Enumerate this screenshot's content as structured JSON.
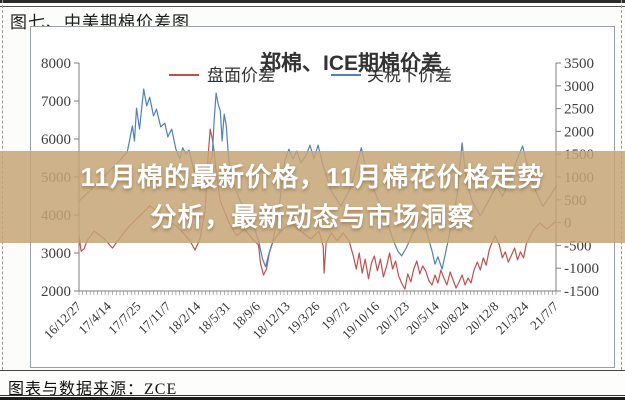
{
  "page": {
    "figure_label": "图七、中美期棉价差图",
    "source_text": "图表与数据来源：ZCE"
  },
  "banner": {
    "line1": "11月棉的最新价格，11月棉花价格走势",
    "line2": "分析，最新动态与市场洞察",
    "bg_color": "rgba(197,165,118,0.85)",
    "text_color": "#ffffff"
  },
  "chart_data": {
    "type": "line",
    "title": "郑棉、ICE期棉价差",
    "grid": false,
    "legend_position": "top",
    "axis_color": "#7f7f7f",
    "label_color": "#3f3f3f",
    "x_tick_labels": [
      "16/12/27",
      "17/4/14",
      "17/7/25",
      "17/11/7",
      "18/2/14",
      "18/5/31",
      "18/9/6",
      "18/12/13",
      "19/3/26",
      "19/7/2",
      "19/10/16",
      "20/1/23",
      "20/5/14",
      "20/8/24",
      "20/12/8",
      "21/3/24",
      "21/7/7"
    ],
    "left_axis": {
      "min": 2000,
      "max": 8000,
      "ticks": [
        8000,
        7000,
        6000,
        5000,
        4000,
        3000,
        2000
      ]
    },
    "right_axis": {
      "min": -1500,
      "max": 3500,
      "ticks": [
        3500,
        3000,
        2500,
        2000,
        1500,
        1000,
        500,
        0,
        -500,
        -1000,
        -1500
      ]
    },
    "legend": [
      {
        "name": "盘面价差",
        "color": "#c0504d"
      },
      {
        "name": "关税下价差",
        "color": "#4f81bd"
      }
    ],
    "series": [
      {
        "name": "盘面价差",
        "color": "#c0504d",
        "axis": "left",
        "points": [
          [
            0,
            3450
          ],
          [
            0.07,
            3050
          ],
          [
            0.17,
            3110
          ],
          [
            0.27,
            3320
          ],
          [
            0.51,
            3580
          ],
          [
            0.85,
            3370
          ],
          [
            1.12,
            3130
          ],
          [
            1.35,
            3370
          ],
          [
            1.69,
            3710
          ],
          [
            2.03,
            3970
          ],
          [
            2.37,
            4240
          ],
          [
            2.71,
            4050
          ],
          [
            3.04,
            3840
          ],
          [
            3.38,
            3630
          ],
          [
            3.72,
            3320
          ],
          [
            3.89,
            3080
          ],
          [
            4.06,
            3370
          ],
          [
            4.23,
            4110
          ],
          [
            4.33,
            5550
          ],
          [
            4.4,
            6260
          ],
          [
            4.47,
            6000
          ],
          [
            4.53,
            5680
          ],
          [
            4.6,
            5160
          ],
          [
            4.74,
            4370
          ],
          [
            5.01,
            3840
          ],
          [
            5.28,
            3450
          ],
          [
            5.55,
            3630
          ],
          [
            5.82,
            3370
          ],
          [
            6.02,
            3210
          ],
          [
            6.09,
            2710
          ],
          [
            6.19,
            2420
          ],
          [
            6.29,
            2580
          ],
          [
            6.39,
            3030
          ],
          [
            6.49,
            3290
          ],
          [
            6.77,
            3580
          ],
          [
            7.1,
            3790
          ],
          [
            7.44,
            3580
          ],
          [
            7.78,
            3370
          ],
          [
            8.05,
            3580
          ],
          [
            8.19,
            3180
          ],
          [
            8.22,
            2470
          ],
          [
            8.29,
            3260
          ],
          [
            8.46,
            3530
          ],
          [
            8.66,
            3320
          ],
          [
            8.86,
            3530
          ],
          [
            9.06,
            3320
          ],
          [
            9.2,
            2920
          ],
          [
            9.3,
            2580
          ],
          [
            9.4,
            3000
          ],
          [
            9.5,
            2470
          ],
          [
            9.6,
            2840
          ],
          [
            9.71,
            2320
          ],
          [
            9.81,
            2740
          ],
          [
            9.91,
            2920
          ],
          [
            10.01,
            2530
          ],
          [
            10.11,
            2840
          ],
          [
            10.21,
            2370
          ],
          [
            10.32,
            2660
          ],
          [
            10.42,
            3000
          ],
          [
            10.52,
            2580
          ],
          [
            10.62,
            2790
          ],
          [
            10.72,
            2400
          ],
          [
            10.82,
            2210
          ],
          [
            10.93,
            2050
          ],
          [
            11.03,
            2450
          ],
          [
            11.13,
            2240
          ],
          [
            11.23,
            2580
          ],
          [
            11.33,
            2790
          ],
          [
            11.43,
            2450
          ],
          [
            11.53,
            2660
          ],
          [
            11.63,
            2530
          ],
          [
            11.74,
            2260
          ],
          [
            11.84,
            2160
          ],
          [
            11.94,
            2420
          ],
          [
            12.04,
            2210
          ],
          [
            12.14,
            2550
          ],
          [
            12.24,
            2340
          ],
          [
            12.34,
            2160
          ],
          [
            12.45,
            2500
          ],
          [
            12.55,
            2290
          ],
          [
            12.65,
            2080
          ],
          [
            12.75,
            2240
          ],
          [
            12.85,
            2420
          ],
          [
            12.95,
            2160
          ],
          [
            13.05,
            2340
          ],
          [
            13.15,
            2210
          ],
          [
            13.25,
            2550
          ],
          [
            13.36,
            2760
          ],
          [
            13.46,
            2550
          ],
          [
            13.56,
            2870
          ],
          [
            13.66,
            2680
          ],
          [
            13.76,
            3080
          ],
          [
            13.86,
            3290
          ],
          [
            13.96,
            3450
          ],
          [
            14.1,
            3210
          ],
          [
            14.2,
            2870
          ],
          [
            14.3,
            3030
          ],
          [
            14.4,
            2760
          ],
          [
            14.51,
            2950
          ],
          [
            14.61,
            3130
          ],
          [
            14.71,
            2820
          ],
          [
            14.81,
            3030
          ],
          [
            14.91,
            2870
          ],
          [
            15.01,
            3260
          ],
          [
            15.22,
            3580
          ],
          [
            15.45,
            3790
          ],
          [
            15.69,
            3630
          ],
          [
            16,
            3840
          ]
        ]
      },
      {
        "name": "关税下价差",
        "color": "#4f81bd",
        "axis": "right",
        "points": [
          [
            0,
            470
          ],
          [
            0.68,
            900
          ],
          [
            1.35,
            1350
          ],
          [
            1.62,
            1550
          ],
          [
            1.79,
            2120
          ],
          [
            1.86,
            1790
          ],
          [
            1.93,
            2510
          ],
          [
            2.03,
            2050
          ],
          [
            2.17,
            2930
          ],
          [
            2.27,
            2560
          ],
          [
            2.37,
            2750
          ],
          [
            2.5,
            2340
          ],
          [
            2.6,
            2490
          ],
          [
            2.74,
            2100
          ],
          [
            2.88,
            2180
          ],
          [
            2.98,
            1880
          ],
          [
            3.11,
            2050
          ],
          [
            3.25,
            1610
          ],
          [
            3.38,
            1400
          ],
          [
            3.48,
            1640
          ],
          [
            3.59,
            1500
          ],
          [
            3.69,
            1590
          ],
          [
            3.82,
            1240
          ],
          [
            4.06,
            690
          ],
          [
            4.3,
            1130
          ],
          [
            4.47,
            1460
          ],
          [
            4.53,
            2230
          ],
          [
            4.6,
            2840
          ],
          [
            4.67,
            2600
          ],
          [
            4.74,
            2450
          ],
          [
            4.8,
            1790
          ],
          [
            4.87,
            2380
          ],
          [
            4.94,
            2120
          ],
          [
            5.01,
            1460
          ],
          [
            5.14,
            910
          ],
          [
            5.41,
            470
          ],
          [
            5.75,
            150
          ],
          [
            6.02,
            -400
          ],
          [
            6.16,
            -800
          ],
          [
            6.26,
            -970
          ],
          [
            6.36,
            -710
          ],
          [
            6.49,
            -450
          ],
          [
            6.7,
            250
          ],
          [
            6.9,
            1350
          ],
          [
            7.04,
            1610
          ],
          [
            7.17,
            1400
          ],
          [
            7.31,
            1570
          ],
          [
            7.44,
            1310
          ],
          [
            7.61,
            1460
          ],
          [
            7.75,
            1700
          ],
          [
            7.88,
            1400
          ],
          [
            8.02,
            1700
          ],
          [
            8.19,
            1240
          ],
          [
            8.46,
            690
          ],
          [
            8.79,
            360
          ],
          [
            9.13,
            800
          ],
          [
            9.47,
            1640
          ],
          [
            9.64,
            1130
          ],
          [
            9.98,
            580
          ],
          [
            10.32,
            40
          ],
          [
            10.55,
            -400
          ],
          [
            10.69,
            -620
          ],
          [
            10.82,
            -730
          ],
          [
            10.96,
            -580
          ],
          [
            11.09,
            -400
          ],
          [
            11.3,
            -80
          ],
          [
            11.5,
            150
          ],
          [
            11.7,
            -290
          ],
          [
            11.84,
            -620
          ],
          [
            11.94,
            -910
          ],
          [
            12.04,
            -750
          ],
          [
            12.18,
            -1020
          ],
          [
            12.28,
            -710
          ],
          [
            12.38,
            -400
          ],
          [
            12.51,
            40
          ],
          [
            12.68,
            580
          ],
          [
            12.85,
            1750
          ],
          [
            12.99,
            910
          ],
          [
            13.19,
            470
          ],
          [
            13.46,
            150
          ],
          [
            13.73,
            470
          ],
          [
            14,
            800
          ],
          [
            14.21,
            580
          ],
          [
            14.48,
            1020
          ],
          [
            14.68,
            1350
          ],
          [
            14.88,
            1680
          ],
          [
            15.09,
            1130
          ],
          [
            15.32,
            690
          ],
          [
            15.56,
            360
          ],
          [
            15.8,
            580
          ],
          [
            16,
            800
          ]
        ]
      }
    ]
  }
}
